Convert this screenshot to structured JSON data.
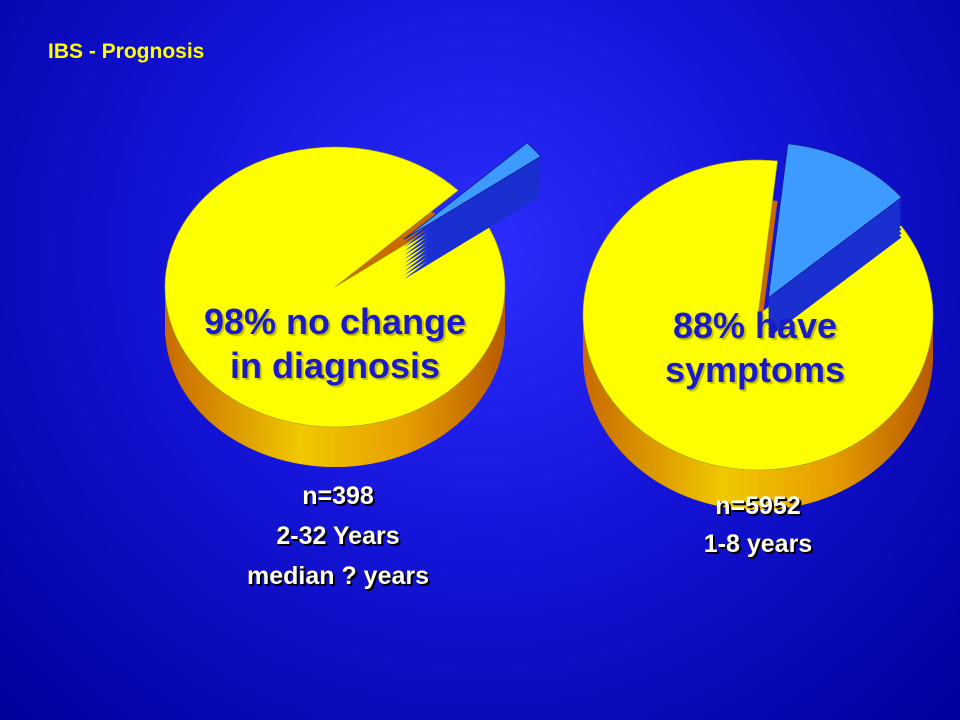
{
  "title": "IBS - Prognosis",
  "chart_data": [
    {
      "type": "pie",
      "values": [
        98,
        2
      ],
      "value_labels": [
        "98% no change in diagnosis",
        null
      ],
      "colors": [
        "#ffff00",
        "#3d9bff"
      ],
      "notes": [
        "n=398",
        "2-32 Years",
        "median ? years"
      ]
    },
    {
      "type": "pie",
      "values": [
        88,
        12
      ],
      "value_labels": [
        "88% have symptoms",
        null
      ],
      "colors": [
        "#ffff00",
        "#3d9bff"
      ],
      "notes": [
        "n=5952",
        "1-8 years"
      ]
    }
  ]
}
